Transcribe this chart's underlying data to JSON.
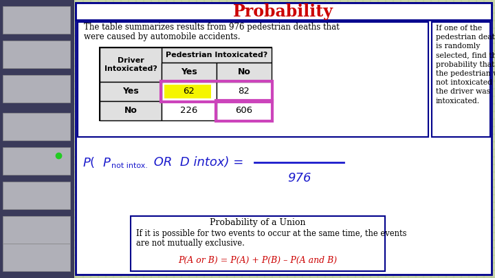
{
  "title": "Probability",
  "title_color": "#cc0000",
  "bg_color": "#c8d5a8",
  "grid_color": "#aabf80",
  "sidebar_color": "#3a3a5a",
  "sidebar_thumb_color": "#d0d0d0",
  "main_border_color": "#00008B",
  "left_panel_text_line1": "The table summarizes results from 976 pedestrian deaths that",
  "left_panel_text_line2": "were caused by automobile accidents.",
  "right_panel_text": "If one of the\npedestrian deaths\nis randomly\nselected, find the\nprobability that\nthe pedestrian was\nnot intoxicated or\nthe driver was\nintoxicated.",
  "table_col1_header": "Driver\nIntoxicated?",
  "table_top_header": "Pedestrian Intoxicated?",
  "table_yes_no": [
    "Yes",
    "No"
  ],
  "table_row1_label": "Yes",
  "table_row2_label": "No",
  "table_row1_data": [
    "62",
    "82"
  ],
  "table_row2_data": [
    "226",
    "606"
  ],
  "highlight_color": "#cc44bb",
  "yellow_color": "#f5f500",
  "formula_color": "#1a1acc",
  "denominator": "976",
  "bottom_box_title": "Probability of a Union",
  "bottom_box_line1": "If it is possible for two events to occur at the same time, the events",
  "bottom_box_line2": "are not mutually exclusive.",
  "bottom_box_formula": "P(A or B) = P(A) + P(B) – P(A and B)",
  "formula_red": "#cc0000"
}
